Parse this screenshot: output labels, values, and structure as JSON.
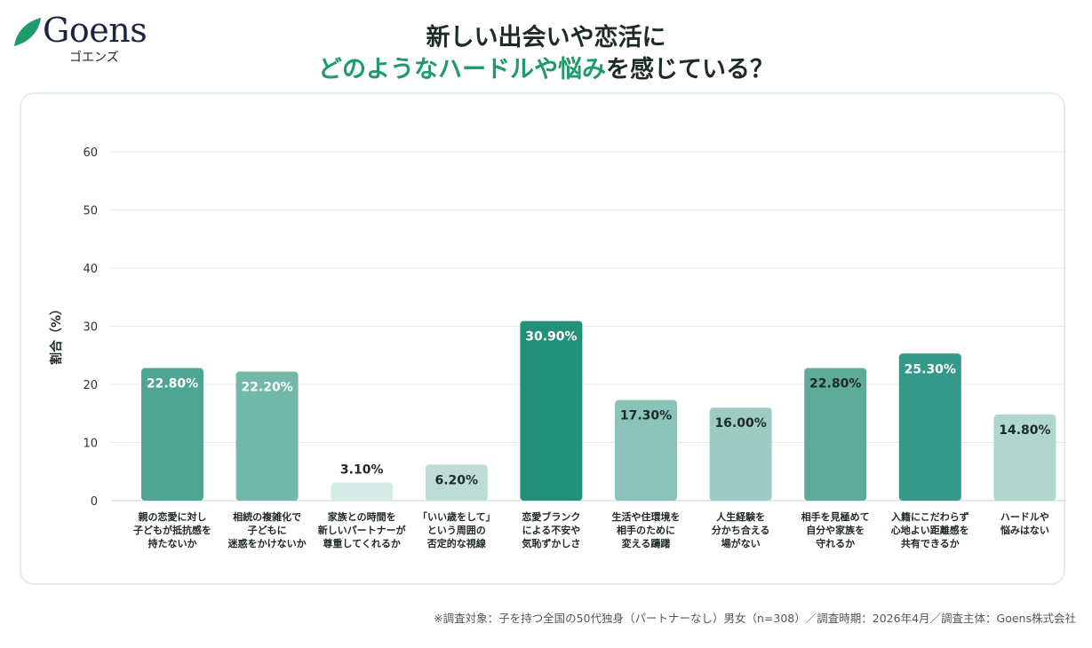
{
  "logo": {
    "wordmark": "Goens",
    "kana": "ゴエンズ",
    "leaf_color": "#1f9a6a"
  },
  "title": {
    "line1": "新しい出会いや恋活に",
    "line2_highlight": "どのようなハードルや悩み",
    "line2_rest": "を感じている？"
  },
  "chart_data": {
    "type": "bar",
    "ylabel": "割合（%）",
    "xlabel": "",
    "ylim": [
      0,
      60
    ],
    "yticks": [
      0,
      10,
      20,
      30,
      40,
      50,
      60
    ],
    "grid": true,
    "categories": [
      [
        "親の恋愛に対し",
        "子どもが抵抗感を",
        "持たないか"
      ],
      [
        "相続の複雑化で",
        "子どもに",
        "迷惑をかけないか"
      ],
      [
        "家族との時間を",
        "新しいパートナーが",
        "尊重してくれるか"
      ],
      [
        "「いい歳をして」",
        "という周囲の",
        "否定的な視線"
      ],
      [
        "恋愛ブランク",
        "による不安や",
        "気恥ずかしさ"
      ],
      [
        "生活や住環境を",
        "相手のために",
        "変える躊躇"
      ],
      [
        "人生経験を",
        "分かち合える",
        "場がない"
      ],
      [
        "相手を見極めて",
        "自分や家族を",
        "守れるか"
      ],
      [
        "入籍にこだわらず",
        "心地よい距離感を",
        "共有できるか"
      ],
      [
        "ハードルや",
        "悩みはない"
      ]
    ],
    "values": [
      22.8,
      22.2,
      3.1,
      6.2,
      30.9,
      17.3,
      16.0,
      22.8,
      25.3,
      14.8
    ],
    "data_labels": [
      "22.80%",
      "22.20%",
      "3.10%",
      "6.20%",
      "30.90%",
      "17.30%",
      "16.00%",
      "22.80%",
      "25.30%",
      "14.80%"
    ],
    "bar_colors": [
      "#4ea591",
      "#72b7a7",
      "#d6ebe5",
      "#bcdcd4",
      "#23917a",
      "#8ac3b7",
      "#9dcbc1",
      "#5eab98",
      "#35998a",
      "#b0d6cd"
    ],
    "label_colors": [
      "#ffffff",
      "#ffffff",
      "#1e2a28",
      "#1e2a28",
      "#ffffff",
      "#1e2a28",
      "#1e2a28",
      "#1e2a28",
      "#ffffff",
      "#1e2a28"
    ]
  },
  "footer": "※調査対象：子を持つ全国の50代独身（パートナーなし）男女（n=308）／調査時期：2026年4月／調査主体：Goens株式会社"
}
